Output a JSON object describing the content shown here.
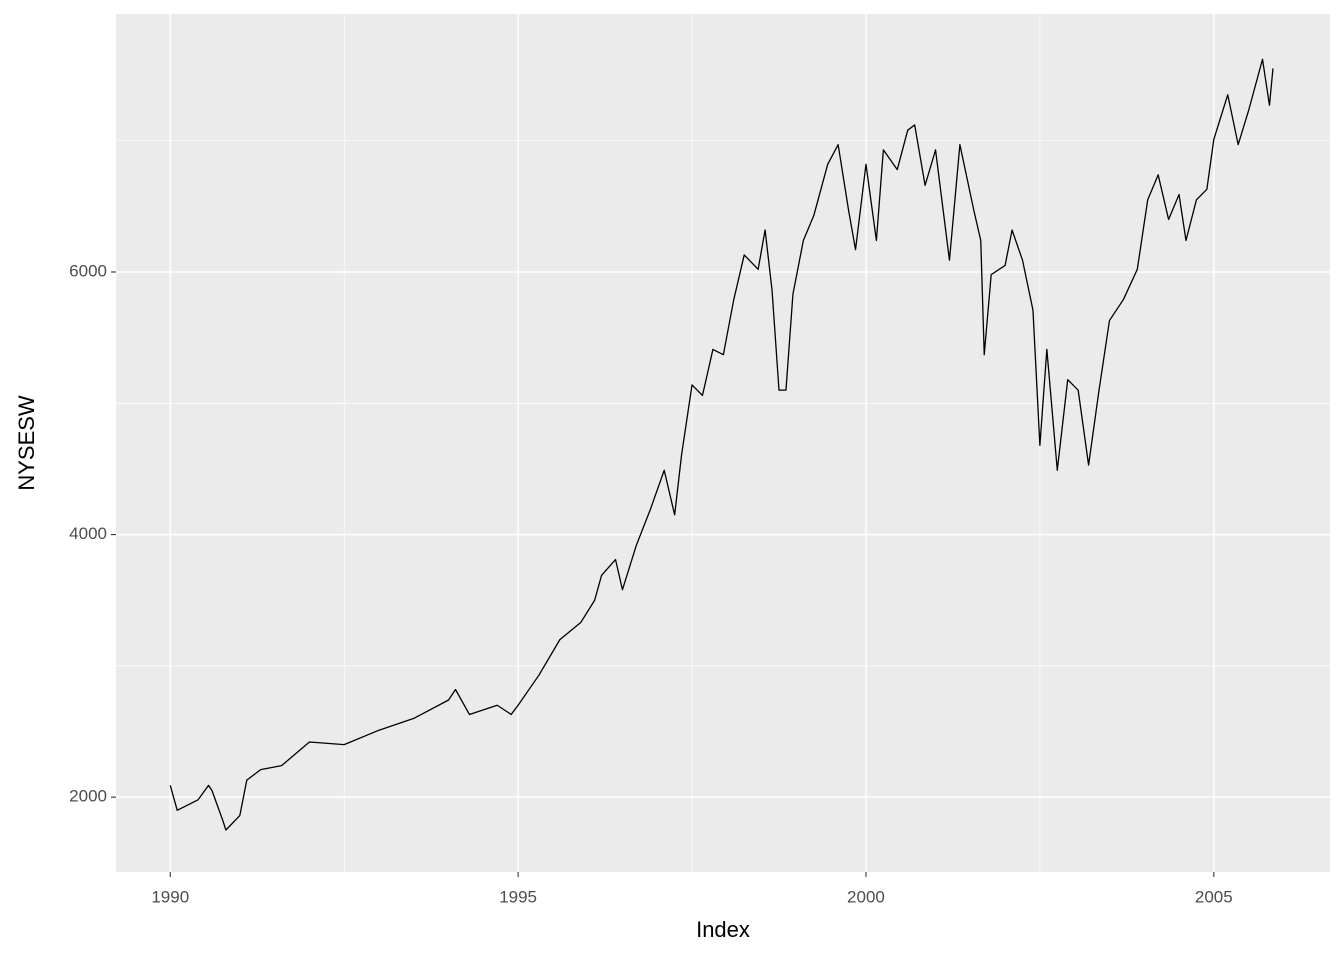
{
  "chart_data": {
    "type": "line",
    "x_label": "Index",
    "y_label": "NYSESW",
    "xlim": [
      1989.22,
      2006.67
    ],
    "ylim": [
      1430,
      7965
    ],
    "xticks": [
      1990,
      1995,
      2000,
      2005
    ],
    "yticks": [
      2000,
      4000,
      6000
    ],
    "xminor": [
      1992.5,
      1997.5,
      2002.5
    ],
    "yminor": [
      3000,
      5000,
      7000
    ],
    "grid": true,
    "series": [
      {
        "color": "#000000",
        "x": [
          1990.0,
          1990.1,
          1990.4,
          1990.55,
          1990.6,
          1990.75,
          1990.8,
          1991.0,
          1991.1,
          1991.3,
          1991.6,
          1992.0,
          1992.5,
          1993.0,
          1993.5,
          1994.0,
          1994.1,
          1994.3,
          1994.7,
          1994.9,
          1995.0,
          1995.3,
          1995.6,
          1995.9,
          1996.1,
          1996.2,
          1996.4,
          1996.5,
          1996.7,
          1996.9,
          1997.1,
          1997.25,
          1997.35,
          1997.5,
          1997.65,
          1997.8,
          1997.95,
          1998.1,
          1998.25,
          1998.45,
          1998.55,
          1998.65,
          1998.75,
          1998.85,
          1998.95,
          1999.1,
          1999.25,
          1999.45,
          1999.6,
          1999.75,
          1999.85,
          2000.0,
          2000.15,
          2000.25,
          2000.45,
          2000.6,
          2000.7,
          2000.85,
          2001.0,
          2001.2,
          2001.35,
          2001.55,
          2001.65,
          2001.7,
          2001.8,
          2002.0,
          2002.1,
          2002.25,
          2002.4,
          2002.5,
          2002.6,
          2002.75,
          2002.9,
          2003.05,
          2003.2,
          2003.35,
          2003.5,
          2003.7,
          2003.9,
          2004.05,
          2004.2,
          2004.35,
          2004.5,
          2004.6,
          2004.75,
          2004.9,
          2005.0,
          2005.2,
          2005.35,
          2005.5,
          2005.7,
          2005.8,
          2005.85
        ],
        "values": [
          2090,
          1900,
          1980,
          2090,
          2050,
          1830,
          1750,
          1860,
          2130,
          2210,
          2240,
          2420,
          2400,
          2510,
          2600,
          2740,
          2820,
          2630,
          2700,
          2630,
          2700,
          2930,
          3200,
          3330,
          3500,
          3690,
          3810,
          3580,
          3920,
          4190,
          4490,
          4150,
          4610,
          5140,
          5060,
          5410,
          5370,
          5790,
          6130,
          6020,
          6320,
          5860,
          5100,
          5100,
          5830,
          6240,
          6430,
          6820,
          6970,
          6470,
          6170,
          6820,
          6240,
          6930,
          6780,
          7080,
          7120,
          6660,
          6930,
          6090,
          6970,
          6470,
          6240,
          5370,
          5980,
          6050,
          6320,
          6090,
          5710,
          4680,
          5410,
          4490,
          5180,
          5100,
          4530,
          5100,
          5630,
          5790,
          6020,
          6550,
          6740,
          6400,
          6590,
          6240,
          6550,
          6630,
          7010,
          7350,
          6970,
          7230,
          7620,
          7270,
          7550
        ]
      }
    ]
  }
}
